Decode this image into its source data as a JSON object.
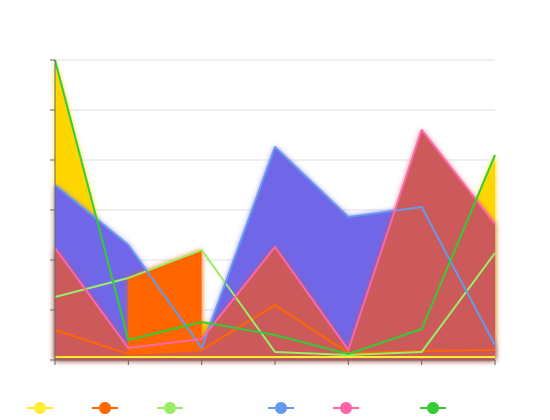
{
  "chart_data": {
    "type": "area",
    "title": "",
    "xlabel": "",
    "ylabel": "",
    "x": [
      0,
      1,
      2,
      3,
      4,
      5,
      6
    ],
    "ylim": [
      0,
      300
    ],
    "grid": true,
    "legend": "bottom",
    "series": [
      {
        "color": "#ffee33",
        "values": [
          3,
          3,
          3,
          3,
          3,
          3,
          3
        ]
      },
      {
        "color": "#ff6600",
        "values": [
          30,
          6,
          10,
          55,
          7,
          9,
          10
        ]
      },
      {
        "color": "#99ee66",
        "values": [
          63,
          82,
          110,
          8,
          5,
          8,
          107
        ]
      },
      {
        "color": "#6699ee",
        "values": [
          175,
          115,
          12,
          213,
          143,
          153,
          15
        ]
      },
      {
        "color": "#ff66aa",
        "values": [
          112,
          12,
          21,
          113,
          10,
          230,
          136
        ]
      },
      {
        "color": "#33cc33",
        "values": [
          300,
          20,
          38,
          25,
          6,
          31,
          205
        ]
      }
    ],
    "fills": [
      {
        "color": "#ffd700",
        "series_index": 5
      },
      {
        "color": "#7066e8",
        "series_index": 3
      },
      {
        "color": "#cc5a5a",
        "series_index": 4
      },
      {
        "color": "#ff6600",
        "series_index": 1,
        "between": [
          2,
          1
        ],
        "x_range": [
          1,
          2
        ]
      }
    ]
  },
  "legend": [
    {
      "color": "#ffee33",
      "icon": "legend-marker-icon"
    },
    {
      "color": "#ff6600",
      "icon": "legend-marker-icon"
    },
    {
      "color": "#99ee66",
      "icon": "legend-marker-icon"
    },
    {
      "color": "#6699ee",
      "icon": "legend-marker-icon"
    },
    {
      "color": "#ff66aa",
      "icon": "legend-marker-icon"
    },
    {
      "color": "#33cc33",
      "icon": "legend-marker-icon"
    }
  ]
}
